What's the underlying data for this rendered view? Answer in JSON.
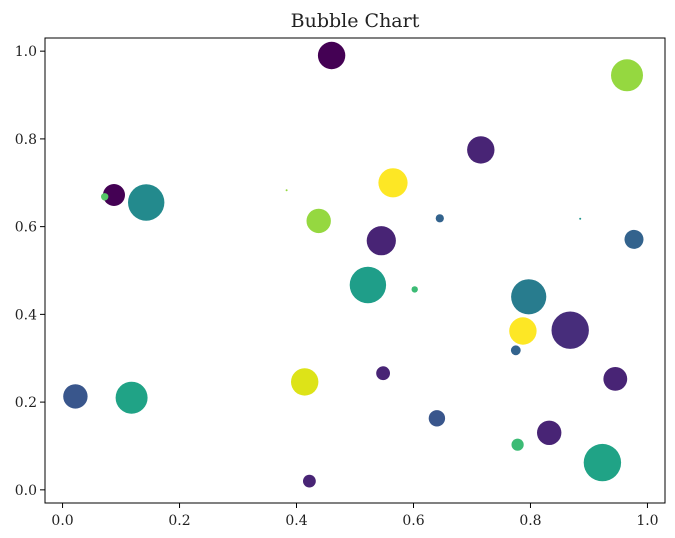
{
  "chart_data": {
    "type": "scatter",
    "title": "Bubble Chart",
    "xlabel": "",
    "ylabel": "",
    "xlim": [
      -0.03,
      1.03
    ],
    "ylim": [
      -0.03,
      1.03
    ],
    "x_ticks": [
      "0.0",
      "0.2",
      "0.4",
      "0.6",
      "0.8",
      "1.0"
    ],
    "y_ticks": [
      "0.0",
      "0.2",
      "0.4",
      "0.6",
      "0.8",
      "1.0"
    ],
    "grid": false,
    "legend": "none",
    "points": [
      {
        "x": 0.46,
        "y": 0.99,
        "size": 560,
        "color": "#440154"
      },
      {
        "x": 0.965,
        "y": 0.945,
        "size": 760,
        "color": "#95d840"
      },
      {
        "x": 0.715,
        "y": 0.775,
        "size": 560,
        "color": "#482475"
      },
      {
        "x": 0.565,
        "y": 0.7,
        "size": 630,
        "color": "#fde725"
      },
      {
        "x": 0.383,
        "y": 0.683,
        "size": 3,
        "color": "#95d840"
      },
      {
        "x": 0.088,
        "y": 0.672,
        "size": 360,
        "color": "#440154"
      },
      {
        "x": 0.072,
        "y": 0.668,
        "size": 40,
        "color": "#55c667"
      },
      {
        "x": 0.143,
        "y": 0.655,
        "size": 990,
        "color": "#238a8d"
      },
      {
        "x": 0.438,
        "y": 0.613,
        "size": 440,
        "color": "#95d840"
      },
      {
        "x": 0.645,
        "y": 0.619,
        "size": 50,
        "color": "#33638d"
      },
      {
        "x": 0.885,
        "y": 0.618,
        "size": 3,
        "color": "#1f968b"
      },
      {
        "x": 0.545,
        "y": 0.568,
        "size": 630,
        "color": "#482475"
      },
      {
        "x": 0.977,
        "y": 0.571,
        "size": 270,
        "color": "#33638d"
      },
      {
        "x": 0.522,
        "y": 0.467,
        "size": 990,
        "color": "#1f9e89"
      },
      {
        "x": 0.602,
        "y": 0.457,
        "size": 30,
        "color": "#3cbb75"
      },
      {
        "x": 0.797,
        "y": 0.44,
        "size": 920,
        "color": "#287c8e"
      },
      {
        "x": 0.787,
        "y": 0.362,
        "size": 560,
        "color": "#fde725"
      },
      {
        "x": 0.868,
        "y": 0.364,
        "size": 1040,
        "color": "#472d7b"
      },
      {
        "x": 0.775,
        "y": 0.318,
        "size": 70,
        "color": "#33638d"
      },
      {
        "x": 0.548,
        "y": 0.266,
        "size": 140,
        "color": "#482475"
      },
      {
        "x": 0.414,
        "y": 0.246,
        "size": 560,
        "color": "#dde318"
      },
      {
        "x": 0.945,
        "y": 0.253,
        "size": 420,
        "color": "#482475"
      },
      {
        "x": 0.022,
        "y": 0.213,
        "size": 440,
        "color": "#39568c"
      },
      {
        "x": 0.118,
        "y": 0.21,
        "size": 760,
        "color": "#20a386"
      },
      {
        "x": 0.64,
        "y": 0.163,
        "size": 200,
        "color": "#39568c"
      },
      {
        "x": 0.832,
        "y": 0.13,
        "size": 440,
        "color": "#482475"
      },
      {
        "x": 0.778,
        "y": 0.103,
        "size": 110,
        "color": "#3cbb75"
      },
      {
        "x": 0.923,
        "y": 0.062,
        "size": 1040,
        "color": "#20a386"
      },
      {
        "x": 0.422,
        "y": 0.02,
        "size": 120,
        "color": "#482475"
      }
    ]
  }
}
